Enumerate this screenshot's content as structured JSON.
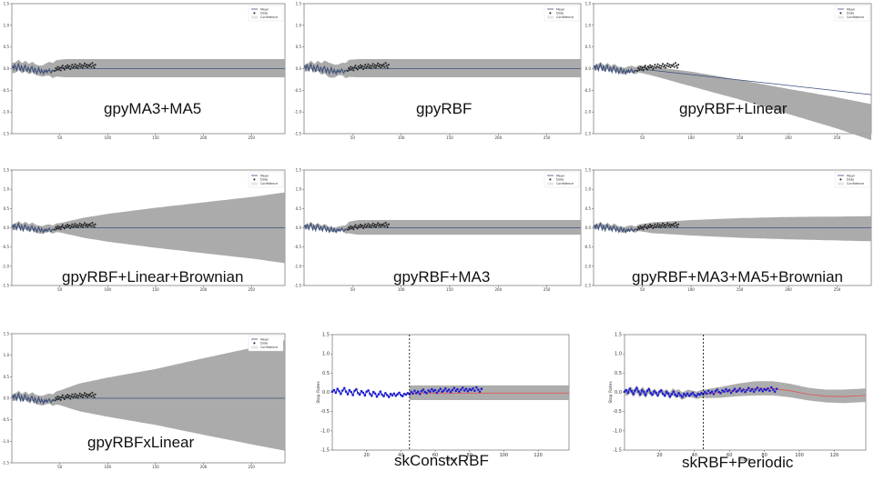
{
  "legend": {
    "mean": "Mean",
    "data": "Data",
    "confidence": "Confidence"
  },
  "colors": {
    "band": "#a6a6a6",
    "mean_line": "#3b4e7a",
    "data_point": "#222222",
    "sk_band": "#a9a9a9",
    "sk_point": "#1f1fd0",
    "sk_line": "#e05555",
    "sk_vline": "#000000"
  },
  "observed": [
    0.02,
    0.06,
    -0.01,
    0.09,
    0.03,
    -0.04,
    0.05,
    0.11,
    0.02,
    -0.05,
    0.06,
    0.01,
    -0.07,
    0.04,
    0.08,
    -0.02,
    -0.06,
    0.03,
    -0.01,
    -0.08,
    0.02,
    0.05,
    -0.04,
    -0.09,
    0.01,
    -0.03,
    -0.11,
    -0.05,
    0.02,
    -0.06,
    -0.1,
    -0.02,
    -0.07,
    -0.12,
    -0.04,
    -0.08,
    -0.03,
    -0.09,
    -0.05,
    -0.01,
    -0.07,
    -0.1,
    -0.04,
    -0.06,
    -0.02,
    -0.05,
    0.01,
    -0.03,
    0.04,
    -0.02,
    0.02,
    -0.04,
    0.03,
    0.07,
    0.01,
    -0.02,
    0.05,
    0.02,
    0.08,
    0.03,
    0.06,
    -0.01,
    0.04,
    0.09,
    0.02,
    0.05,
    0.1,
    0.03,
    0.07,
    0.01,
    0.06,
    0.11,
    0.04,
    0.08,
    0.02,
    0.07,
    0.12,
    0.05,
    0.09,
    0.03,
    0.08,
    0.06,
    0.1,
    0.04,
    0.13,
    0.07,
    0.02,
    0.09
  ],
  "chart_data": [
    {
      "type": "line",
      "caption": "gpyMA3+MA5",
      "xlim": [
        0,
        285
      ],
      "ylim": [
        -1.5,
        1.5
      ],
      "xticks": [
        50,
        100,
        150,
        200,
        250
      ],
      "yticks": [
        -1.5,
        -1.0,
        -0.5,
        0.0,
        0.5,
        1.0,
        1.5
      ],
      "train_end": 45,
      "band": [
        [
          0,
          0.12,
          0.12
        ],
        [
          30,
          0.12,
          0.12
        ],
        [
          40,
          0.17,
          0.16
        ],
        [
          45,
          0.19,
          0.18
        ],
        [
          55,
          0.22,
          0.2
        ],
        [
          80,
          0.22,
          0.2
        ],
        [
          285,
          0.22,
          0.2
        ]
      ],
      "mean": [
        [
          45,
          0.0
        ],
        [
          285,
          0.0
        ]
      ]
    },
    {
      "type": "line",
      "caption": "gpyRBF",
      "xlim": [
        0,
        285
      ],
      "ylim": [
        -1.5,
        1.5
      ],
      "xticks": [
        50,
        100,
        150,
        200,
        250
      ],
      "yticks": [
        -1.5,
        -1.0,
        -0.5,
        0.0,
        0.5,
        1.0,
        1.5
      ],
      "train_end": 45,
      "band": [
        [
          0,
          0.08,
          0.08
        ],
        [
          10,
          0.1,
          0.1
        ],
        [
          20,
          0.14,
          0.14
        ],
        [
          25,
          0.17,
          0.17
        ],
        [
          30,
          0.16,
          0.16
        ],
        [
          35,
          0.12,
          0.12
        ],
        [
          40,
          0.15,
          0.15
        ],
        [
          45,
          0.2,
          0.19
        ],
        [
          55,
          0.22,
          0.2
        ],
        [
          285,
          0.22,
          0.2
        ]
      ],
      "mean": [
        [
          45,
          0.0
        ],
        [
          285,
          0.0
        ]
      ]
    },
    {
      "type": "line",
      "caption": "gpyRBF+Linear",
      "xlim": [
        0,
        285
      ],
      "ylim": [
        -1.5,
        1.5
      ],
      "xticks": [
        50,
        100,
        150,
        200,
        250
      ],
      "yticks": [
        -1.5,
        -1.0,
        -0.5,
        0.0,
        0.5,
        1.0,
        1.5
      ],
      "train_end": 45,
      "band": [
        [
          0,
          0.06,
          0.06
        ],
        [
          45,
          0.08,
          0.08
        ],
        [
          60,
          0.08,
          0.12
        ],
        [
          100,
          0.07,
          0.27
        ],
        [
          150,
          0.0,
          0.45
        ],
        [
          200,
          -0.08,
          0.66
        ],
        [
          250,
          -0.15,
          0.87
        ],
        [
          285,
          -0.22,
          1.05
        ]
      ],
      "mean": [
        [
          45,
          0.0
        ],
        [
          285,
          -0.6
        ]
      ]
    },
    {
      "type": "line",
      "caption": "gpyRBF+Linear+Brownian",
      "xlim": [
        0,
        285
      ],
      "ylim": [
        -1.5,
        1.5
      ],
      "xticks": [
        50,
        100,
        150,
        200,
        250
      ],
      "yticks": [
        -1.5,
        -1.0,
        -0.5,
        0.0,
        0.5,
        1.0,
        1.5
      ],
      "train_end": 45,
      "band": [
        [
          0,
          0.08,
          0.08
        ],
        [
          20,
          0.1,
          0.1
        ],
        [
          40,
          0.1,
          0.1
        ],
        [
          50,
          0.12,
          0.12
        ],
        [
          75,
          0.26,
          0.26
        ],
        [
          100,
          0.36,
          0.36
        ],
        [
          150,
          0.52,
          0.52
        ],
        [
          200,
          0.66,
          0.66
        ],
        [
          250,
          0.8,
          0.8
        ],
        [
          285,
          0.92,
          0.92
        ]
      ],
      "mean": [
        [
          45,
          0.0
        ],
        [
          285,
          0.0
        ]
      ]
    },
    {
      "type": "line",
      "caption": "gpyRBF+MA3",
      "xlim": [
        0,
        285
      ],
      "ylim": [
        -1.5,
        1.5
      ],
      "xticks": [
        50,
        100,
        150,
        200,
        250
      ],
      "yticks": [
        -1.5,
        -1.0,
        -0.5,
        0.0,
        0.5,
        1.0,
        1.5
      ],
      "train_end": 45,
      "band": [
        [
          0,
          0.06,
          0.06
        ],
        [
          40,
          0.06,
          0.06
        ],
        [
          45,
          0.15,
          0.14
        ],
        [
          55,
          0.2,
          0.18
        ],
        [
          285,
          0.2,
          0.18
        ]
      ],
      "mean": [
        [
          45,
          0.0
        ],
        [
          285,
          0.0
        ]
      ]
    },
    {
      "type": "line",
      "caption": "gpyRBF+MA3+MA5+Brownian",
      "xlim": [
        0,
        285
      ],
      "ylim": [
        -1.5,
        1.5
      ],
      "xticks": [
        50,
        100,
        150,
        200,
        250
      ],
      "yticks": [
        -1.5,
        -1.0,
        -0.5,
        0.0,
        0.5,
        1.0,
        1.5
      ],
      "train_end": 45,
      "band": [
        [
          0,
          0.06,
          0.06
        ],
        [
          45,
          0.08,
          0.08
        ],
        [
          60,
          0.14,
          0.14
        ],
        [
          100,
          0.2,
          0.2
        ],
        [
          150,
          0.25,
          0.26
        ],
        [
          200,
          0.28,
          0.3
        ],
        [
          285,
          0.3,
          0.35
        ]
      ],
      "mean": [
        [
          45,
          0.0
        ],
        [
          285,
          0.0
        ]
      ]
    },
    {
      "type": "line",
      "caption": "gpyRBFxLinear",
      "xlim": [
        0,
        285
      ],
      "ylim": [
        -1.5,
        1.5
      ],
      "xticks": [
        50,
        100,
        150,
        200,
        250
      ],
      "yticks": [
        -1.5,
        -1.0,
        -0.5,
        0.0,
        0.5,
        1.0,
        1.5
      ],
      "train_end": 45,
      "band": [
        [
          0,
          0.08,
          0.08
        ],
        [
          20,
          0.1,
          0.1
        ],
        [
          40,
          0.12,
          0.12
        ],
        [
          50,
          0.18,
          0.16
        ],
        [
          70,
          0.34,
          0.3
        ],
        [
          100,
          0.48,
          0.43
        ],
        [
          150,
          0.68,
          0.62
        ],
        [
          200,
          0.93,
          0.85
        ],
        [
          250,
          1.17,
          1.07
        ],
        [
          285,
          1.35,
          1.22
        ]
      ],
      "mean": [
        [
          45,
          0.0
        ],
        [
          285,
          0.0
        ]
      ]
    },
    {
      "type": "line",
      "caption": "skConstxRBF",
      "xlabel": "Time",
      "ylabel": "Stop Rates",
      "xlim": [
        0,
        138
      ],
      "ylim": [
        -1.5,
        1.5
      ],
      "xticks": [
        20,
        40,
        60,
        80,
        100,
        120
      ],
      "yticks": [
        -1.5,
        -1.0,
        -0.5,
        0.0,
        0.5,
        1.0,
        1.5
      ],
      "train_end": 45,
      "band": [
        [
          45,
          0.2,
          0.18
        ],
        [
          138,
          0.2,
          0.18
        ]
      ],
      "mean": [
        [
          45,
          -0.02
        ],
        [
          138,
          -0.02
        ]
      ]
    },
    {
      "type": "line",
      "caption": "skRBF+Periodic",
      "xlabel": "Time",
      "ylabel": "Stop Rates",
      "xlim": [
        0,
        138
      ],
      "ylim": [
        -1.5,
        1.5
      ],
      "xticks": [
        20,
        40,
        60,
        80,
        100,
        120
      ],
      "yticks": [
        -1.5,
        -1.0,
        -0.5,
        0.0,
        0.5,
        1.0,
        1.5
      ],
      "train_end": 45,
      "band": [
        [
          0,
          0.08,
          0.08
        ],
        [
          10,
          0.1,
          0.1
        ],
        [
          20,
          0.06,
          0.06
        ],
        [
          30,
          0.1,
          0.1
        ],
        [
          40,
          0.09,
          0.09
        ],
        [
          45,
          0.11,
          0.11
        ],
        [
          55,
          0.14,
          0.14
        ],
        [
          65,
          0.17,
          0.16
        ],
        [
          75,
          0.19,
          0.18
        ],
        [
          85,
          0.19,
          0.18
        ],
        [
          95,
          0.18,
          0.17
        ],
        [
          105,
          0.17,
          0.16
        ],
        [
          115,
          0.17,
          0.16
        ],
        [
          125,
          0.18,
          0.17
        ],
        [
          138,
          0.18,
          0.17
        ]
      ],
      "mean": [
        [
          45,
          -0.04
        ],
        [
          55,
          0.0
        ],
        [
          65,
          0.06
        ],
        [
          75,
          0.1
        ],
        [
          85,
          0.1
        ],
        [
          95,
          0.04
        ],
        [
          105,
          -0.05
        ],
        [
          115,
          -0.1
        ],
        [
          125,
          -0.11
        ],
        [
          138,
          -0.08
        ]
      ]
    }
  ]
}
